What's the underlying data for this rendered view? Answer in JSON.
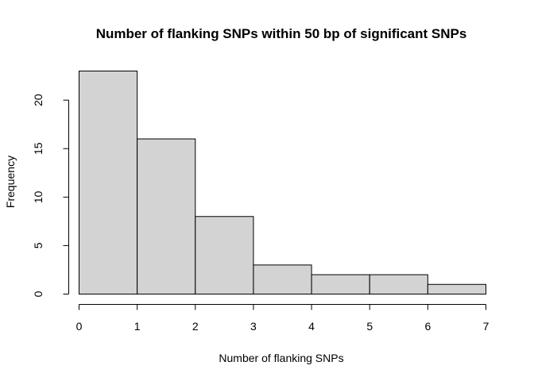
{
  "chart_data": {
    "type": "bar",
    "title": "Number of flanking SNPs within 50 bp of significant SNPs",
    "xlabel": "Number of flanking SNPs",
    "ylabel": "Frequency",
    "bins": [
      [
        0,
        1
      ],
      [
        1,
        2
      ],
      [
        2,
        3
      ],
      [
        3,
        4
      ],
      [
        4,
        5
      ],
      [
        5,
        6
      ],
      [
        6,
        7
      ]
    ],
    "values": [
      23,
      16,
      8,
      3,
      2,
      2,
      1
    ],
    "xlim": [
      0,
      7
    ],
    "ylim": [
      0,
      23
    ],
    "xticks": [
      0,
      1,
      2,
      3,
      4,
      5,
      6,
      7
    ],
    "yticks": [
      0,
      5,
      10,
      15,
      20
    ],
    "grid": false,
    "legend": "none",
    "bar_color": "#d3d3d3",
    "edge_color": "#000000"
  }
}
